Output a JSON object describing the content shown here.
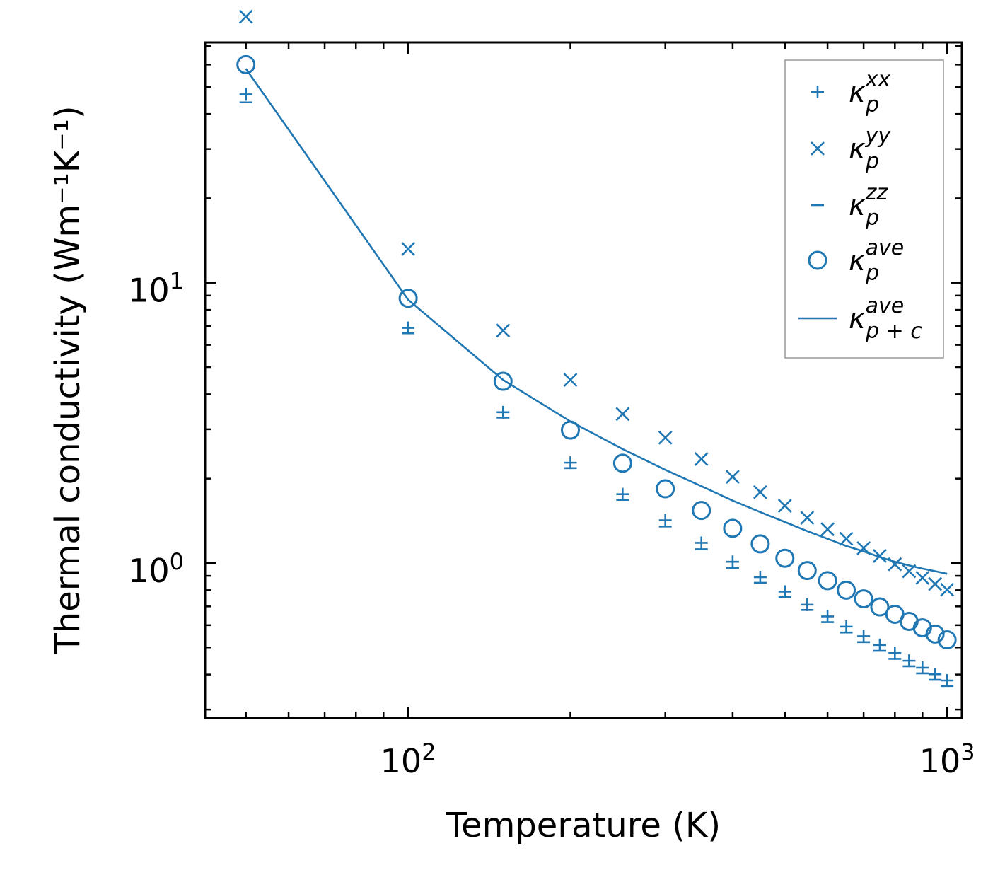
{
  "chart_data": {
    "type": "scatter",
    "title": "",
    "xlabel": "Temperature (K)",
    "ylabel": "Thermal conductivity (Wm⁻¹K⁻¹)",
    "xscale": "log",
    "yscale": "log",
    "xlim": [
      42,
      1065
    ],
    "ylim": [
      0.28,
      72
    ],
    "x_ticks": [
      {
        "value": 100,
        "base": "10",
        "exp": "2"
      },
      {
        "value": 1000,
        "base": "10",
        "exp": "3"
      }
    ],
    "y_ticks": [
      {
        "value": 1,
        "base": "10",
        "exp": "0"
      },
      {
        "value": 10,
        "base": "10",
        "exp": "1"
      }
    ],
    "x": [
      50,
      100,
      150,
      200,
      250,
      300,
      350,
      400,
      450,
      500,
      550,
      600,
      650,
      700,
      750,
      800,
      850,
      900,
      950,
      1000
    ],
    "series": [
      {
        "name": "kxx",
        "marker": "plus",
        "values": [
          47,
          6.9,
          3.45,
          2.28,
          1.76,
          1.42,
          1.18,
          1.01,
          0.89,
          0.79,
          0.71,
          0.645,
          0.593,
          0.548,
          0.51,
          0.477,
          0.448,
          0.423,
          0.401,
          0.381
        ]
      },
      {
        "name": "kyy",
        "marker": "x",
        "values": [
          89,
          13.2,
          6.75,
          4.5,
          3.4,
          2.8,
          2.35,
          2.03,
          1.79,
          1.6,
          1.45,
          1.32,
          1.22,
          1.13,
          1.06,
          0.99,
          0.935,
          0.885,
          0.842,
          0.803
        ]
      },
      {
        "name": "kzz",
        "marker": "minus",
        "values": [
          44,
          6.6,
          3.3,
          2.18,
          1.68,
          1.35,
          1.12,
          0.96,
          0.85,
          0.755,
          0.68,
          0.615,
          0.565,
          0.522,
          0.486,
          0.455,
          0.428,
          0.404,
          0.383,
          0.364
        ]
      },
      {
        "name": "kave",
        "marker": "circle",
        "values": [
          60,
          8.8,
          4.45,
          2.98,
          2.27,
          1.84,
          1.54,
          1.33,
          1.17,
          1.04,
          0.94,
          0.865,
          0.8,
          0.745,
          0.697,
          0.656,
          0.619,
          0.587,
          0.558,
          0.532
        ]
      },
      {
        "name": "kave_pc",
        "marker": "line",
        "values": [
          58,
          8.7,
          4.5,
          3.2,
          2.55,
          2.15,
          1.88,
          1.67,
          1.52,
          1.4,
          1.3,
          1.22,
          1.15,
          1.1,
          1.05,
          1.01,
          0.98,
          0.955,
          0.935,
          0.915
        ]
      }
    ],
    "color": "#1f77b4",
    "legend": {
      "position": "top-right",
      "entries": [
        {
          "marker": "plus",
          "sym": "κ",
          "sub": "p",
          "sup": "xx"
        },
        {
          "marker": "x",
          "sym": "κ",
          "sub": "p",
          "sup": "yy"
        },
        {
          "marker": "minus",
          "sym": "κ",
          "sub": "p",
          "sup": "zz"
        },
        {
          "marker": "circle",
          "sym": "κ",
          "sub": "p",
          "sup": "ave"
        },
        {
          "marker": "line",
          "sym": "κ",
          "sub": "p + c",
          "sup": "ave"
        }
      ]
    }
  }
}
